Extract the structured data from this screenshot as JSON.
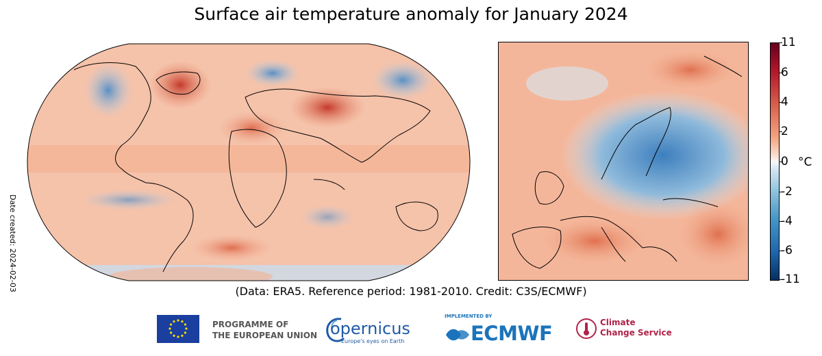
{
  "title": "Surface air temperature anomaly for January 2024",
  "date_created": "Date created: 2024-02-03",
  "credit": "(Data: ERA5.  Reference period: 1981-2010.  Credit: C3S/ECMWF)",
  "colorbar": {
    "unit": "°C",
    "ticks": [
      "11",
      "6",
      "4",
      "2",
      "0",
      "-2",
      "-4",
      "-6",
      "-11"
    ],
    "colors": {
      "max": "#67001f",
      "warm": "#d6604d",
      "neutral": "#f7f7f7",
      "cool": "#4393c3",
      "min": "#053061"
    }
  },
  "logos": {
    "eu_line1": "PROGRAMME OF",
    "eu_line2": "THE EUROPEAN UNION",
    "copernicus": "opernicus",
    "copernicus_tagline": "Europe's eyes on Earth",
    "ecmwf_implemented": "IMPLEMENTED BY",
    "ecmwf": "ECMWF",
    "ccs_line1": "Climate",
    "ccs_line2": "Change Service"
  }
}
